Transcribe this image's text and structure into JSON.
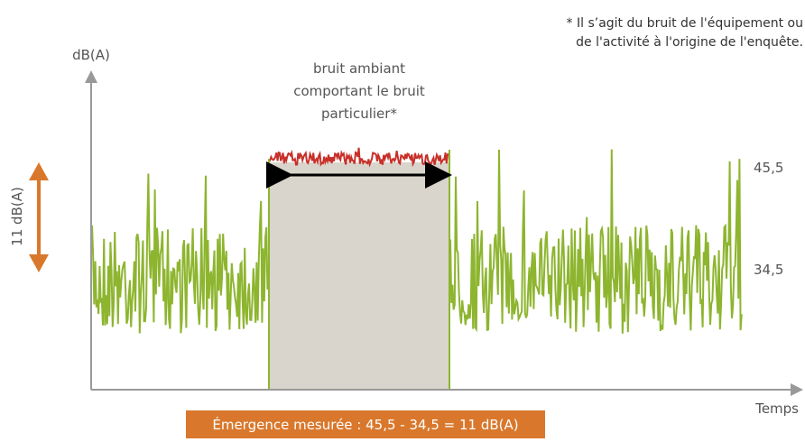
{
  "axes": {
    "y_label": "dB(A)",
    "x_label": "Temps"
  },
  "annotation": {
    "lines": [
      "bruit ambiant",
      "comportant le bruit",
      "particulier*"
    ]
  },
  "footnote": {
    "lines": [
      "* Il s’agit du bruit de l'équipement ou",
      "de l'activité à l'origine de l'enquête."
    ]
  },
  "levels": {
    "high": "45,5",
    "low": "34,5"
  },
  "difference": "11 dB(A)",
  "result": "Émergence mesurée : 45,5 - 34,5 = 11 dB(A)"
}
